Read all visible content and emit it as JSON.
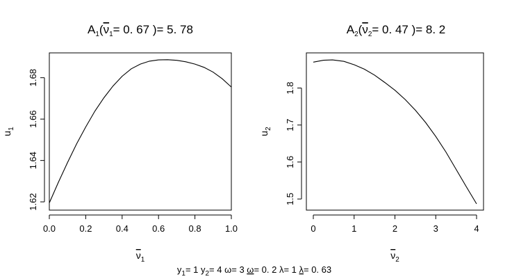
{
  "chart_data": [
    {
      "type": "line",
      "title": {
        "main": "A",
        "sub": "1",
        "open": "(",
        "bar_var": "ν",
        "bar_sub": "1",
        "rest": "= 0. 67 )= 5. 78"
      },
      "xlabel": {
        "main": "ν",
        "sub": "1"
      },
      "ylabel": {
        "main": "u",
        "sub": "1"
      },
      "xlim": [
        0,
        1
      ],
      "ylim": [
        1.616,
        1.692
      ],
      "xticks": [
        0,
        0.2,
        0.4,
        0.6,
        0.8,
        1.0
      ],
      "xtick_labels": [
        "0.0",
        "0.2",
        "0.4",
        "0.6",
        "0.8",
        "1.0"
      ],
      "yticks": [
        1.62,
        1.64,
        1.66,
        1.68
      ],
      "ytick_labels": [
        "1.62",
        "1.64",
        "1.66",
        "1.68"
      ],
      "x": [
        0,
        0.05,
        0.1,
        0.15,
        0.2,
        0.25,
        0.3,
        0.35,
        0.4,
        0.45,
        0.5,
        0.55,
        0.6,
        0.65,
        0.7,
        0.75,
        0.8,
        0.85,
        0.9,
        0.95,
        1.0
      ],
      "y": [
        1.6195,
        1.6295,
        1.639,
        1.648,
        1.6562,
        1.6638,
        1.6703,
        1.676,
        1.6807,
        1.6843,
        1.6866,
        1.688,
        1.6886,
        1.6887,
        1.6884,
        1.6877,
        1.6866,
        1.685,
        1.6827,
        1.6795,
        1.6755
      ]
    },
    {
      "type": "line",
      "title": {
        "main": "A",
        "sub": "2",
        "open": "(",
        "bar_var": "ν",
        "bar_sub": "2",
        "rest": "= 0. 47 )= 8. 2"
      },
      "xlabel": {
        "main": "ν",
        "sub": "2"
      },
      "ylabel": {
        "main": "u",
        "sub": "2"
      },
      "xlim": [
        -0.17,
        4.17
      ],
      "ylim": [
        1.47,
        1.895
      ],
      "xticks": [
        0,
        1,
        2,
        3,
        4
      ],
      "xtick_labels": [
        "0",
        "1",
        "2",
        "3",
        "4"
      ],
      "yticks": [
        1.5,
        1.6,
        1.7,
        1.8
      ],
      "ytick_labels": [
        "1.5",
        "1.6",
        "1.7",
        "1.8"
      ],
      "x": [
        0,
        0.25,
        0.47,
        0.75,
        1.0,
        1.25,
        1.5,
        1.75,
        2.0,
        2.25,
        2.5,
        2.75,
        3.0,
        3.25,
        3.5,
        3.75,
        4.0
      ],
      "y": [
        1.87,
        1.875,
        1.876,
        1.872,
        1.863,
        1.851,
        1.835,
        1.815,
        1.794,
        1.769,
        1.74,
        1.707,
        1.669,
        1.627,
        1.58,
        1.533,
        1.487
      ]
    }
  ],
  "footer": [
    {
      "t": "y"
    },
    {
      "t": "1",
      "sub": true
    },
    {
      "t": "= 1 y"
    },
    {
      "t": "2",
      "sub": true
    },
    {
      "t": "= 4 ω= 3 "
    },
    {
      "t": "ω",
      "underline": true
    },
    {
      "t": "= 0. 2 λ= 1 "
    },
    {
      "t": "λ",
      "underline": true
    },
    {
      "t": "= 0. 63"
    }
  ]
}
